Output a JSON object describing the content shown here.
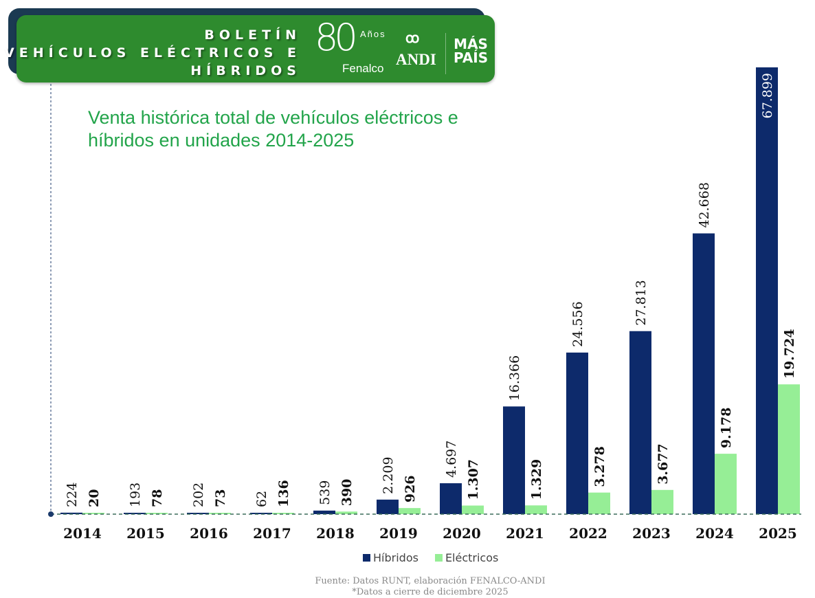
{
  "header": {
    "title_lines": [
      "BOLETÍN",
      "VEHÍCULOS ELÉCTRICOS E",
      "HÍBRIDOS"
    ],
    "logos": {
      "fenalco_number": "80",
      "fenalco_years": "Años",
      "fenalco_name": "Fenalco",
      "andi": "ANDI",
      "mas_pais_1": "MÁS",
      "mas_pais_2": "PAÍS"
    }
  },
  "colors": {
    "hibridos": "#0d2a6b",
    "electricos": "#96ee96",
    "header_green": "#2e8b2e",
    "title_green": "#22a44a"
  },
  "chart_data": {
    "type": "bar",
    "title_lines": [
      "Venta histórica total de  vehículos eléctricos e",
      "híbridos en unidades 2014-2025"
    ],
    "categories": [
      "2014",
      "2015",
      "2016",
      "2017",
      "2018",
      "2019",
      "2020",
      "2021",
      "2022",
      "2023",
      "2024",
      "2025"
    ],
    "series": [
      {
        "name": "Híbridos",
        "values": [
          224,
          193,
          202,
          62,
          539,
          2209,
          4697,
          16366,
          24556,
          27813,
          42668,
          67899
        ],
        "labels": [
          "224",
          "193",
          "202",
          "62",
          "539",
          "2.209",
          "4.697",
          "16.366",
          "24.556",
          "27.813",
          "42.668",
          "67.899"
        ]
      },
      {
        "name": "Eléctricos",
        "values": [
          20,
          78,
          73,
          136,
          390,
          926,
          1307,
          1329,
          3278,
          3677,
          9178,
          19724
        ],
        "labels": [
          "20",
          "78",
          "73",
          "136",
          "390",
          "926",
          "1.307",
          "1.329",
          "3.278",
          "3.677",
          "9.178",
          "19.724"
        ]
      }
    ],
    "ylim": [
      0,
      67899
    ],
    "grid": false,
    "legend": "bottom"
  },
  "footer": {
    "source": "Fuente: Datos RUNT, elaboración FENALCO-ANDI",
    "note": "*Datos a cierre de diciembre 2025"
  }
}
